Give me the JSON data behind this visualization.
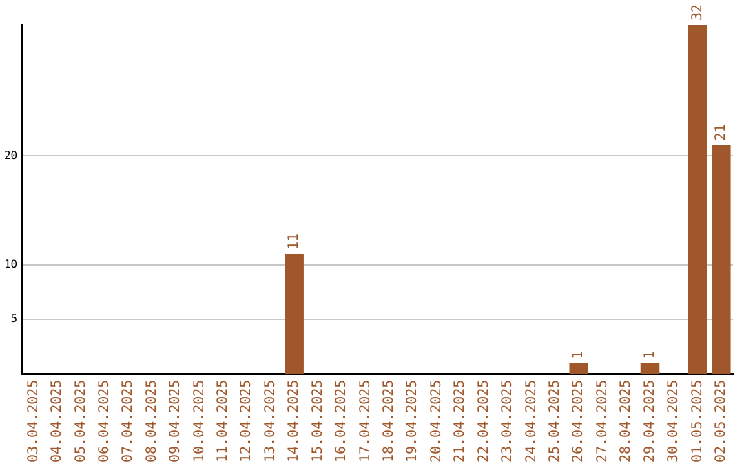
{
  "chart_data": {
    "type": "bar",
    "categories": [
      "03.04.2025",
      "04.04.2025",
      "05.04.2025",
      "06.04.2025",
      "07.04.2025",
      "08.04.2025",
      "09.04.2025",
      "10.04.2025",
      "11.04.2025",
      "12.04.2025",
      "13.04.2025",
      "14.04.2025",
      "15.04.2025",
      "16.04.2025",
      "17.04.2025",
      "18.04.2025",
      "19.04.2025",
      "20.04.2025",
      "21.04.2025",
      "22.04.2025",
      "23.04.2025",
      "24.04.2025",
      "25.04.2025",
      "26.04.2025",
      "27.04.2025",
      "28.04.2025",
      "29.04.2025",
      "30.04.2025",
      "01.05.2025",
      "02.05.2025"
    ],
    "values": [
      0,
      0,
      0,
      0,
      0,
      0,
      0,
      0,
      0,
      0,
      0,
      11,
      0,
      0,
      0,
      0,
      0,
      0,
      0,
      0,
      0,
      0,
      0,
      1,
      0,
      0,
      1,
      0,
      32,
      21
    ],
    "value_labels": [
      null,
      null,
      null,
      null,
      null,
      null,
      null,
      null,
      null,
      null,
      null,
      "11",
      null,
      null,
      null,
      null,
      null,
      null,
      null,
      null,
      null,
      null,
      null,
      "1",
      null,
      null,
      "1",
      null,
      "32",
      "21"
    ],
    "color": "#a0572a",
    "ylim": [
      0,
      32
    ],
    "yticks": [
      5,
      10,
      20
    ],
    "grid": "y",
    "legend": false
  }
}
